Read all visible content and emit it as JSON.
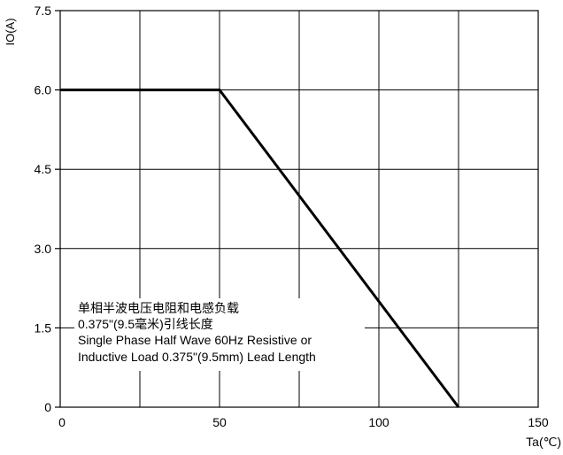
{
  "chart_data": {
    "type": "line",
    "title": "",
    "xlabel": "Ta(℃)",
    "ylabel": "IO(A)",
    "xlim": [
      0,
      150
    ],
    "ylim": [
      0,
      7.5
    ],
    "x_ticks": [
      0,
      50,
      100,
      150
    ],
    "x_tick_labels": [
      "0",
      "50",
      "100",
      "150"
    ],
    "y_ticks": [
      0,
      1.5,
      3.0,
      4.5,
      6.0,
      7.5
    ],
    "y_tick_labels": [
      "0",
      "1.5",
      "3.0",
      "4.5",
      "6.0",
      "7.5"
    ],
    "grid": true,
    "grid_x_step": 25,
    "grid_y_step": 1.5,
    "series": [
      {
        "x": [
          0,
          50,
          125
        ],
        "y": [
          6.0,
          6.0,
          0
        ],
        "color": "#000000"
      }
    ],
    "annotations": [
      "单相半波电压电阻和电感负载",
      "0.375\"(9.5毫米)引线长度",
      "Single Phase Half Wave 60Hz  Resistive or",
      "Inductive Load 0.375\"(9.5mm) Lead Length"
    ]
  }
}
